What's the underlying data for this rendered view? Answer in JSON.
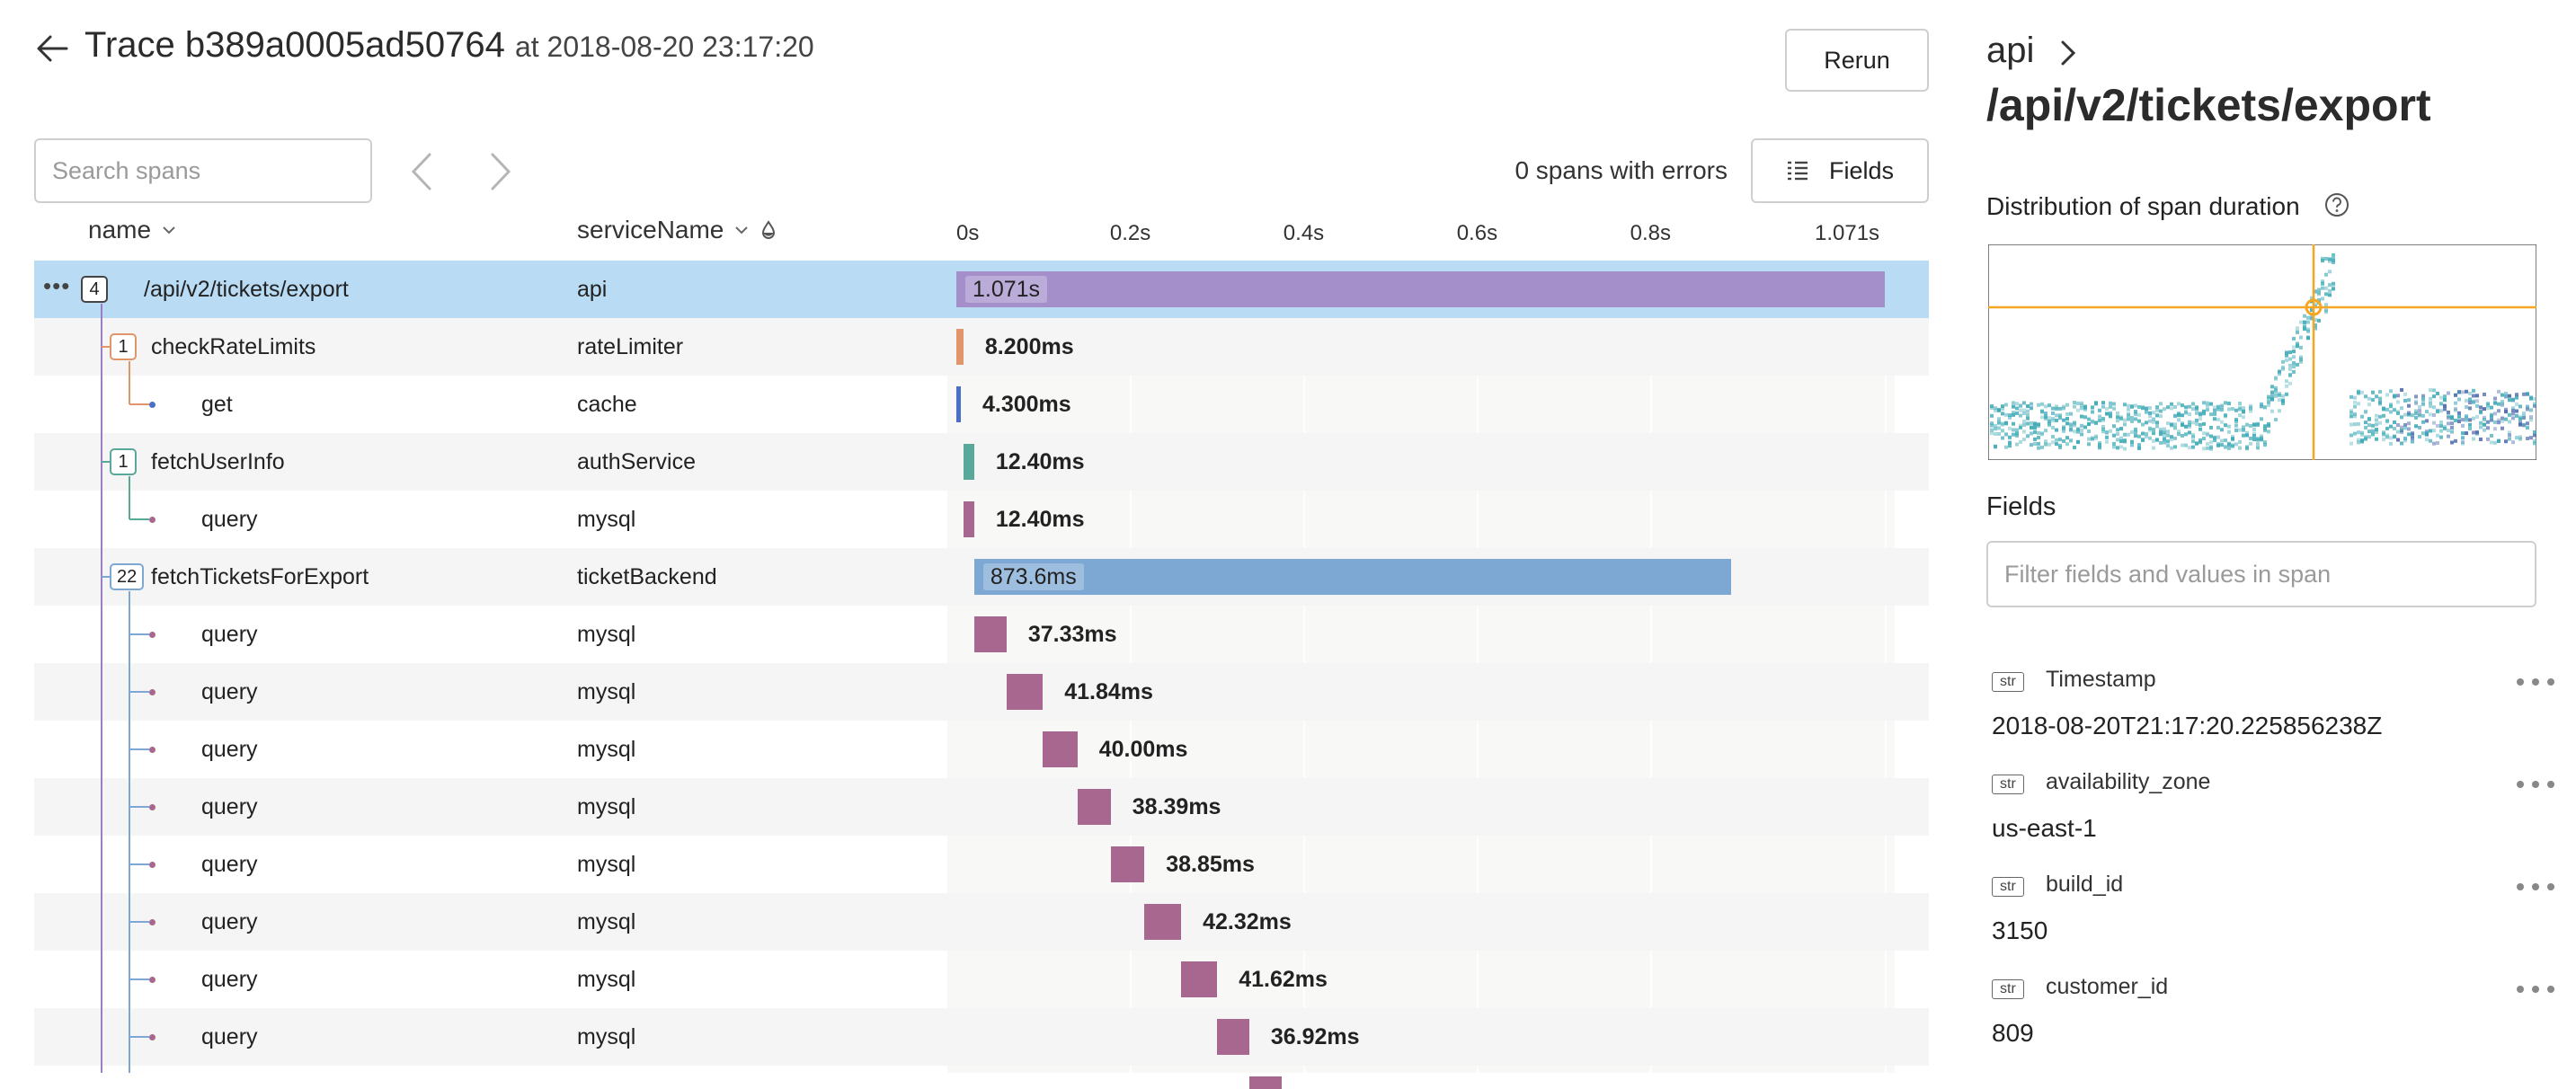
{
  "header": {
    "title_prefix": "Trace",
    "trace_id": "b389a0005ad50764",
    "at_text": "at 2018-08-20 23:17:20",
    "rerun_label": "Rerun"
  },
  "toolbar": {
    "search_placeholder": "Search spans",
    "errors_text": "0 spans with errors",
    "fields_label": "Fields"
  },
  "columns": {
    "name": "name",
    "service": "serviceName"
  },
  "timeline_ticks": [
    "0s",
    "0.2s",
    "0.4s",
    "0.6s",
    "0.8s",
    "1.071s"
  ],
  "spans": [
    {
      "name": "/api/v2/tickets/export",
      "service": "api",
      "depth": 0,
      "children": "4",
      "start": 0,
      "duration_ms": 1071,
      "label": "1.071s",
      "color": "#a48fcb",
      "selected": true
    },
    {
      "name": "checkRateLimits",
      "service": "rateLimiter",
      "depth": 1,
      "children": "1",
      "start": 0,
      "duration_ms": 8.2,
      "label": "8.200ms",
      "color": "#e0956a"
    },
    {
      "name": "get",
      "service": "cache",
      "depth": 2,
      "children": "",
      "start": 0,
      "duration_ms": 4.3,
      "label": "4.300ms",
      "color": "#4a6fc4"
    },
    {
      "name": "fetchUserInfo",
      "service": "authService",
      "depth": 1,
      "children": "1",
      "start": 8.2,
      "duration_ms": 12.4,
      "label": "12.40ms",
      "color": "#5aa89a"
    },
    {
      "name": "query",
      "service": "mysql",
      "depth": 2,
      "children": "",
      "start": 8.2,
      "duration_ms": 12.4,
      "label": "12.40ms",
      "color": "#a7678f"
    },
    {
      "name": "fetchTicketsForExport",
      "service": "ticketBackend",
      "depth": 1,
      "children": "22",
      "start": 20.6,
      "duration_ms": 873.6,
      "label": "873.6ms",
      "color": "#7ea8d4"
    },
    {
      "name": "query",
      "service": "mysql",
      "depth": 2,
      "children": "",
      "start": 20.6,
      "duration_ms": 37.33,
      "label": "37.33ms",
      "color": "#a7678f"
    },
    {
      "name": "query",
      "service": "mysql",
      "depth": 2,
      "children": "",
      "start": 57.9,
      "duration_ms": 41.84,
      "label": "41.84ms",
      "color": "#a7678f"
    },
    {
      "name": "query",
      "service": "mysql",
      "depth": 2,
      "children": "",
      "start": 99.7,
      "duration_ms": 40.0,
      "label": "40.00ms",
      "color": "#a7678f"
    },
    {
      "name": "query",
      "service": "mysql",
      "depth": 2,
      "children": "",
      "start": 139.7,
      "duration_ms": 38.39,
      "label": "38.39ms",
      "color": "#a7678f"
    },
    {
      "name": "query",
      "service": "mysql",
      "depth": 2,
      "children": "",
      "start": 178.1,
      "duration_ms": 38.85,
      "label": "38.85ms",
      "color": "#a7678f"
    },
    {
      "name": "query",
      "service": "mysql",
      "depth": 2,
      "children": "",
      "start": 217.0,
      "duration_ms": 42.32,
      "label": "42.32ms",
      "color": "#a7678f"
    },
    {
      "name": "query",
      "service": "mysql",
      "depth": 2,
      "children": "",
      "start": 259.3,
      "duration_ms": 41.62,
      "label": "41.62ms",
      "color": "#a7678f"
    },
    {
      "name": "query",
      "service": "mysql",
      "depth": 2,
      "children": "",
      "start": 300.9,
      "duration_ms": 36.92,
      "label": "36.92ms",
      "color": "#a7678f"
    }
  ],
  "panel": {
    "service": "api",
    "title": "/api/v2/tickets/export",
    "distribution_title": "Distribution of span duration",
    "fields_title": "Fields",
    "filter_placeholder": "Filter fields and values in span",
    "fields": [
      {
        "type": "str",
        "name": "Timestamp",
        "value": "2018-08-20T21:17:20.225856238Z"
      },
      {
        "type": "str",
        "name": "availability_zone",
        "value": "us-east-1"
      },
      {
        "type": "str",
        "name": "build_id",
        "value": "3150"
      },
      {
        "type": "str",
        "name": "customer_id",
        "value": "809"
      }
    ]
  },
  "colors": {
    "selected_row": "#b9dcf4",
    "heatmap_cursor": "#f5a623",
    "heatmap_cell": "#3fa9b5"
  }
}
